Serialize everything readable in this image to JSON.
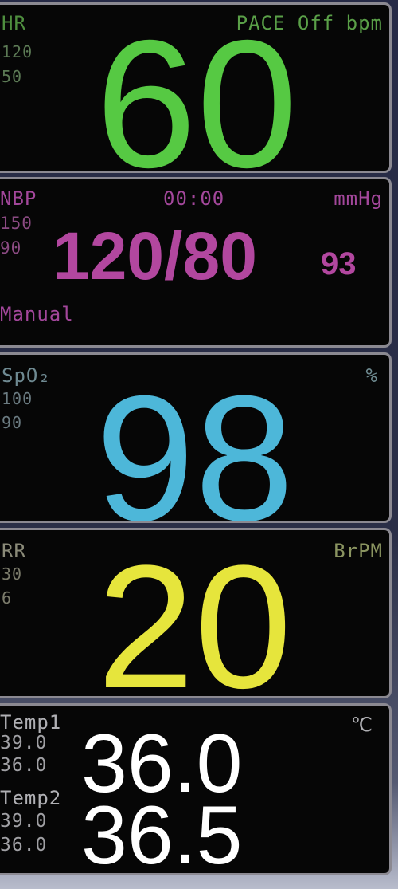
{
  "monitor": {
    "hr": {
      "label": "HR",
      "limit_high": "120",
      "limit_low": "50",
      "pace": "PACE Off",
      "unit": "bpm",
      "value": "60",
      "color": "#56c943"
    },
    "nibp": {
      "label": "NBP",
      "time": "00:00",
      "unit": "mmHg",
      "limit_high": "150",
      "limit_low": "90",
      "value": "120/80",
      "mean": "93",
      "mode": "Manual",
      "color": "#b2479f"
    },
    "spo2": {
      "label": "SpO₂",
      "unit": "%",
      "limit_high": "100",
      "limit_low": "90",
      "value": "98",
      "color": "#4db7d9"
    },
    "rr": {
      "label": "RR",
      "unit": "BrPM",
      "limit_high": "30",
      "limit_low": "6",
      "value": "20",
      "color": "#e6e53c"
    },
    "temp": {
      "unit": "℃",
      "color": "#ffffff",
      "channels": [
        {
          "label": "Temp1",
          "limit_high": "39.0",
          "limit_low": "36.0",
          "value": "36.0"
        },
        {
          "label": "Temp2",
          "limit_high": "39.0",
          "limit_low": "36.0",
          "value": "36.5"
        }
      ]
    }
  }
}
